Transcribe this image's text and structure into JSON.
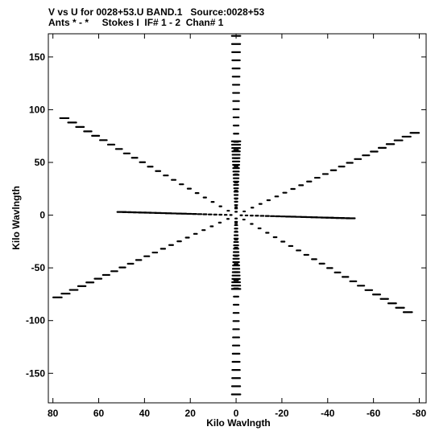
{
  "header": {
    "line1": "V vs U for 0028+53.U BAND.1   Source:0028+53",
    "line2": "Ants * - *     Stokes I  IF# 1 - 2  Chan# 1"
  },
  "chart_data": {
    "type": "scatter",
    "title": "V vs U for 0028+53.U BAND.1   Source:0028+53",
    "subtitle": "Ants * - *     Stokes I  IF# 1 - 2  Chan# 1",
    "xlabel": "Kilo Wavlngth",
    "ylabel": "Kilo Wavlngth",
    "xlim": [
      82,
      -83
    ],
    "ylim": [
      -178,
      172
    ],
    "x_direction": "reversed",
    "xticks": [
      80,
      60,
      40,
      20,
      0,
      -20,
      -40,
      -60,
      -80
    ],
    "xtick_labels": [
      "80",
      "60",
      "40",
      "20",
      "0",
      "-20",
      "-40",
      "-60",
      "-80"
    ],
    "yticks": [
      -150,
      -100,
      -50,
      0,
      50,
      100,
      150
    ],
    "ytick_labels": [
      "-150",
      "-100",
      "-50",
      "0",
      "50",
      "100",
      "150"
    ],
    "marker_color": "#000000",
    "arms": [
      {
        "name": "top-bottom",
        "end_u": 0,
        "end_v": 170
      },
      {
        "name": "upper-right-lower-left",
        "end_u": -78,
        "end_v": 78
      },
      {
        "name": "upper-left-lower-right",
        "end_u": 75,
        "end_v": 92
      },
      {
        "name": "left-right",
        "end_u": 50,
        "end_v": 3
      },
      {
        "name": "vertical-spine",
        "end_u": 0,
        "end_v": 70
      }
    ],
    "samples_per_arm": 22,
    "grid": false,
    "legend": "none"
  }
}
